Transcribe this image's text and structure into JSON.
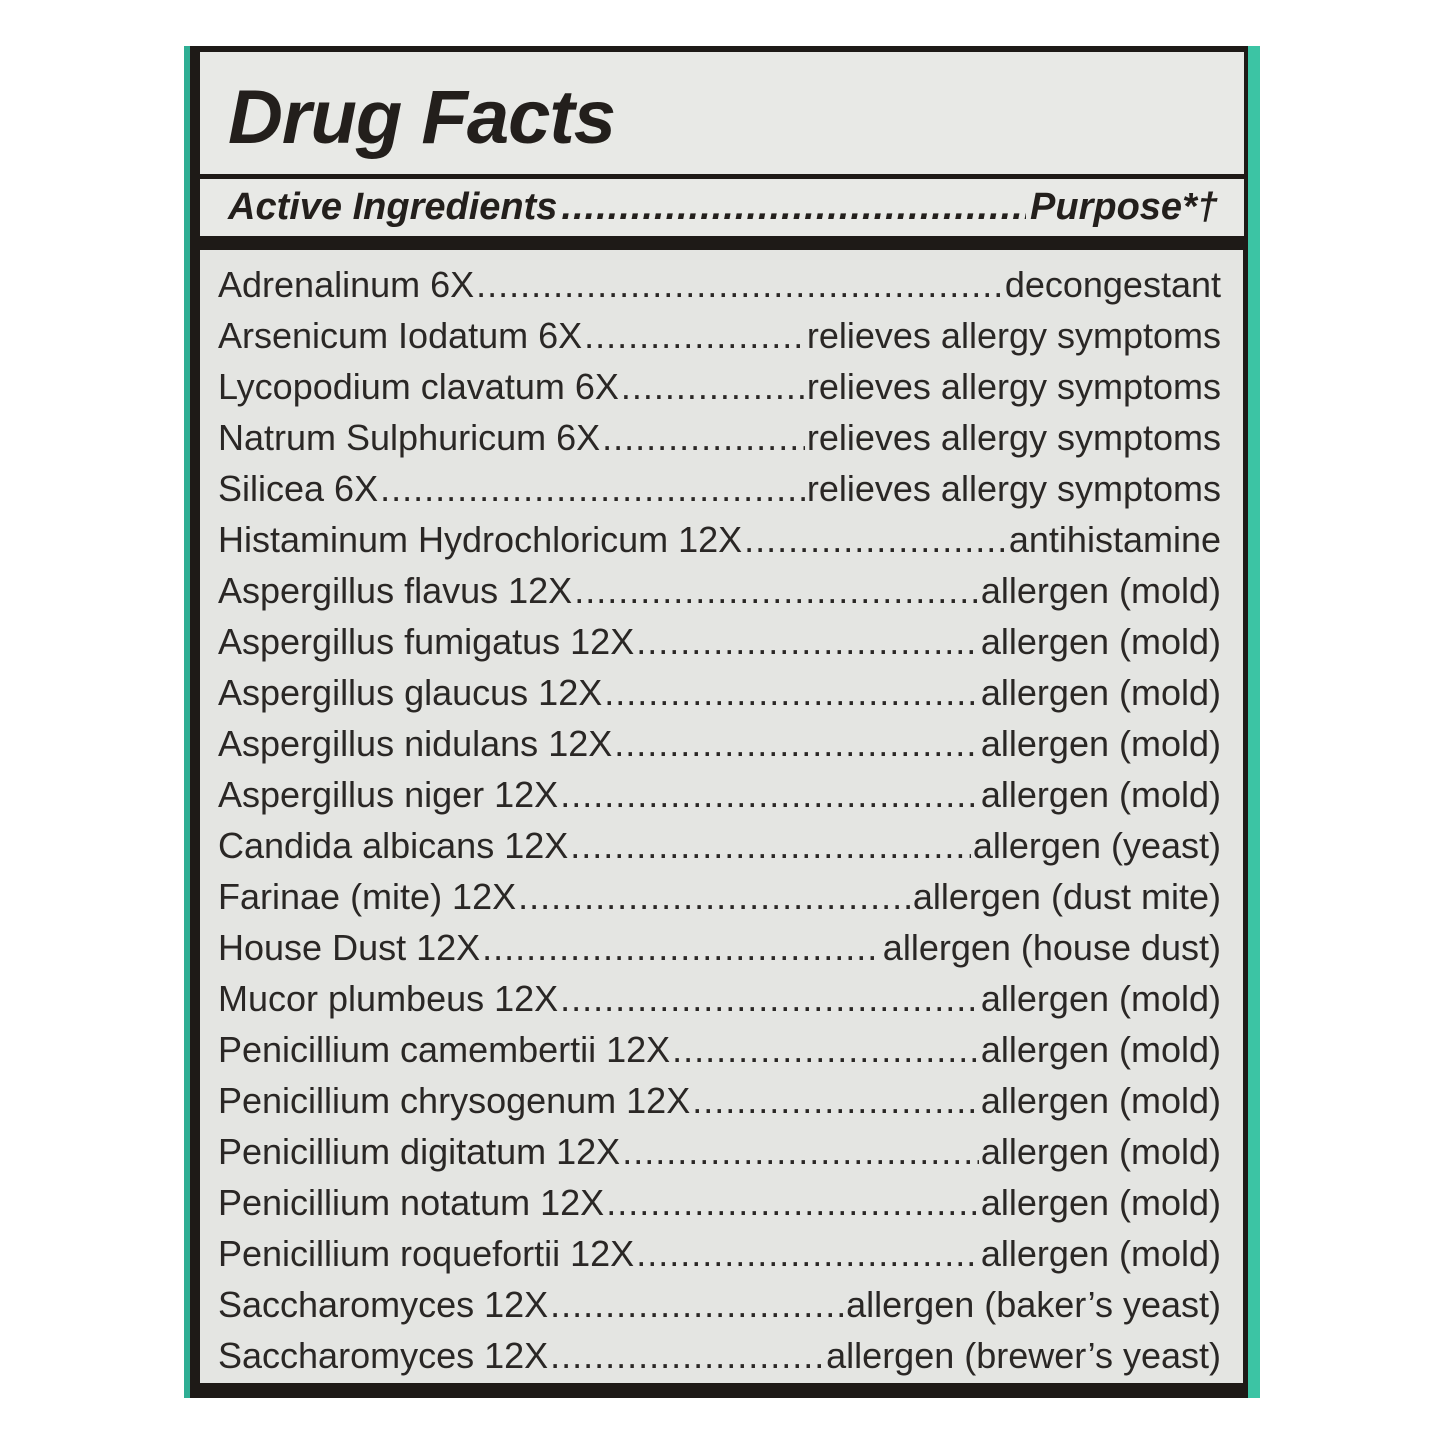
{
  "colors": {
    "accent": "#3cc4a4",
    "border": "#1e1a17",
    "panel": "#e6e7e4"
  },
  "title": "Drug Facts",
  "header": {
    "left": "Active Ingredients",
    "right": "Purpose*†"
  },
  "ingredients": [
    {
      "name": "Adrenalinum 6X",
      "purpose": "decongestant"
    },
    {
      "name": "Arsenicum Iodatum 6X",
      "purpose": "relieves allergy symptoms"
    },
    {
      "name": "Lycopodium clavatum 6X",
      "purpose": "relieves allergy symptoms"
    },
    {
      "name": "Natrum Sulphuricum 6X",
      "purpose": "relieves allergy symptoms"
    },
    {
      "name": "Silicea 6X",
      "purpose": "relieves allergy symptoms"
    },
    {
      "name": "Histaminum Hydrochloricum 12X",
      "purpose": "antihistamine"
    },
    {
      "name": "Aspergillus flavus 12X",
      "purpose": "allergen (mold)"
    },
    {
      "name": "Aspergillus fumigatus 12X",
      "purpose": "allergen (mold)"
    },
    {
      "name": "Aspergillus glaucus 12X",
      "purpose": "allergen (mold)"
    },
    {
      "name": "Aspergillus nidulans 12X",
      "purpose": "allergen (mold)"
    },
    {
      "name": "Aspergillus niger 12X",
      "purpose": "allergen (mold)"
    },
    {
      "name": "Candida albicans 12X",
      "purpose": "allergen (yeast)"
    },
    {
      "name": "Farinae (mite) 12X",
      "purpose": "allergen (dust mite)"
    },
    {
      "name": "House Dust 12X",
      "purpose": "allergen (house dust)"
    },
    {
      "name": "Mucor plumbeus 12X",
      "purpose": "allergen (mold)"
    },
    {
      "name": "Penicillium camembertii 12X",
      "purpose": "allergen (mold)"
    },
    {
      "name": "Penicillium chrysogenum 12X",
      "purpose": "allergen (mold)"
    },
    {
      "name": "Penicillium digitatum 12X",
      "purpose": "allergen (mold)"
    },
    {
      "name": "Penicillium notatum 12X",
      "purpose": "allergen (mold)"
    },
    {
      "name": "Penicillium roquefortii 12X",
      "purpose": "allergen (mold)"
    },
    {
      "name": "Saccharomyces 12X",
      "purpose": "allergen (baker’s yeast)"
    },
    {
      "name": "Saccharomyces 12X",
      "purpose": "allergen (brewer’s yeast)"
    }
  ]
}
